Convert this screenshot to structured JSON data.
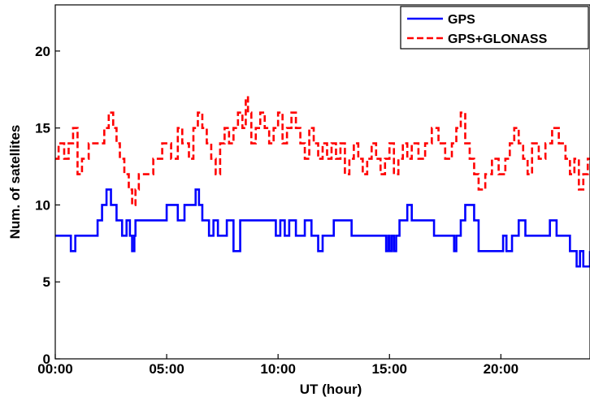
{
  "chart_data": {
    "type": "line",
    "title": "",
    "xlabel": "UT (hour)",
    "ylabel": "Num. of satellites",
    "xlim": [
      0,
      24
    ],
    "ylim": [
      0,
      23
    ],
    "xticks": [
      0,
      5,
      10,
      15,
      20
    ],
    "xtick_labels": [
      "00:00",
      "05:00",
      "10:00",
      "15:00",
      "20:00"
    ],
    "yticks": [
      0,
      5,
      10,
      15,
      20
    ],
    "ytick_labels": [
      "0",
      "5",
      "10",
      "15",
      "20"
    ],
    "grid": false,
    "legend_position": "top-right",
    "series": [
      {
        "name": "GPS",
        "color": "#0000ff",
        "style": "solid",
        "x": [
          0,
          0.7,
          0.9,
          1.1,
          1.5,
          1.9,
          2.1,
          2.3,
          2.5,
          2.75,
          3.0,
          3.2,
          3.35,
          3.45,
          3.55,
          3.6,
          4.0,
          4.5,
          5.0,
          5.3,
          5.5,
          5.8,
          6.0,
          6.3,
          6.45,
          6.6,
          6.9,
          7.1,
          7.3,
          7.7,
          8.0,
          8.3,
          8.6,
          8.8,
          9.0,
          9.4,
          9.9,
          10.1,
          10.3,
          10.5,
          10.8,
          11.0,
          11.2,
          11.5,
          11.8,
          12.0,
          12.5,
          13.0,
          13.3,
          13.8,
          14.0,
          14.5,
          14.85,
          14.95,
          15.0,
          15.1,
          15.2,
          15.3,
          15.45,
          15.7,
          15.8,
          16.0,
          16.3,
          16.6,
          16.8,
          17.0,
          17.3,
          17.6,
          17.9,
          18.0,
          18.2,
          18.4,
          18.8,
          19.0,
          19.5,
          20.0,
          20.1,
          20.25,
          20.5,
          20.8,
          21.1,
          21.3,
          21.5,
          21.9,
          22.2,
          22.5,
          22.9,
          23.1,
          23.3,
          23.4,
          23.55,
          23.7,
          24.0
        ],
        "y": [
          8,
          7,
          8,
          8,
          8,
          9,
          10,
          11,
          10,
          9,
          8,
          9,
          8,
          7,
          8,
          9,
          9,
          9,
          10,
          10,
          9,
          10,
          10,
          11,
          10,
          9,
          8,
          9,
          8,
          9,
          7,
          9,
          9,
          9,
          9,
          9,
          8,
          9,
          8,
          9,
          8,
          8,
          9,
          8,
          7,
          8,
          9,
          9,
          8,
          8,
          8,
          8,
          7,
          8,
          7,
          8,
          7,
          8,
          9,
          9,
          10,
          9,
          9,
          9,
          9,
          8,
          8,
          8,
          7,
          8,
          9,
          10,
          9,
          7,
          7,
          7,
          8,
          7,
          8,
          9,
          8,
          8,
          8,
          8,
          9,
          8,
          8,
          7,
          7,
          6,
          7,
          6,
          7
        ]
      },
      {
        "name": "GPS+GLONASS",
        "color": "#ff0000",
        "style": "dashed",
        "x": [
          0,
          0.15,
          0.4,
          0.6,
          0.8,
          1.0,
          1.2,
          1.5,
          1.9,
          2.2,
          2.4,
          2.6,
          2.75,
          2.9,
          3.1,
          3.3,
          3.45,
          3.6,
          3.75,
          4.0,
          4.4,
          4.8,
          5.2,
          5.5,
          5.7,
          6.0,
          6.2,
          6.4,
          6.6,
          6.8,
          7.0,
          7.2,
          7.4,
          7.6,
          7.8,
          8.0,
          8.2,
          8.4,
          8.55,
          8.65,
          8.8,
          9.0,
          9.2,
          9.4,
          9.6,
          9.8,
          10.0,
          10.2,
          10.4,
          10.6,
          10.8,
          11.0,
          11.2,
          11.4,
          11.6,
          11.8,
          12.0,
          12.2,
          12.4,
          12.6,
          12.8,
          13.0,
          13.2,
          13.4,
          13.6,
          13.8,
          14.0,
          14.2,
          14.4,
          14.6,
          14.8,
          15.0,
          15.2,
          15.4,
          15.6,
          15.8,
          16.0,
          16.3,
          16.6,
          16.9,
          17.2,
          17.5,
          17.8,
          18.0,
          18.2,
          18.4,
          18.6,
          18.8,
          19.0,
          19.3,
          19.6,
          19.9,
          20.2,
          20.4,
          20.6,
          20.8,
          21.0,
          21.2,
          21.4,
          21.7,
          22.0,
          22.3,
          22.6,
          22.9,
          23.1,
          23.3,
          23.5,
          23.7,
          23.9,
          24.0
        ],
        "y": [
          13,
          14,
          13,
          14,
          15,
          12,
          13,
          14,
          14,
          15,
          16,
          15,
          14,
          13,
          12,
          11,
          10,
          11,
          12,
          12,
          13,
          14,
          13,
          15,
          14,
          13,
          15,
          16,
          15,
          14,
          13,
          12,
          14,
          15,
          14,
          15,
          16,
          15,
          17,
          16,
          14,
          15,
          16,
          15,
          14,
          15,
          16,
          14,
          15,
          16,
          15,
          14,
          13,
          15,
          14,
          13,
          14,
          13,
          14,
          13,
          14,
          12,
          13,
          14,
          13,
          12,
          13,
          14,
          13,
          12,
          13,
          14,
          12,
          13,
          14,
          13,
          14,
          13,
          14,
          15,
          14,
          13,
          14,
          15,
          16,
          14,
          13,
          12,
          11,
          12,
          13,
          12,
          13,
          14,
          15,
          14,
          13,
          12,
          14,
          13,
          14,
          15,
          14,
          13,
          12,
          13,
          11,
          12,
          13,
          13
        ]
      }
    ]
  }
}
